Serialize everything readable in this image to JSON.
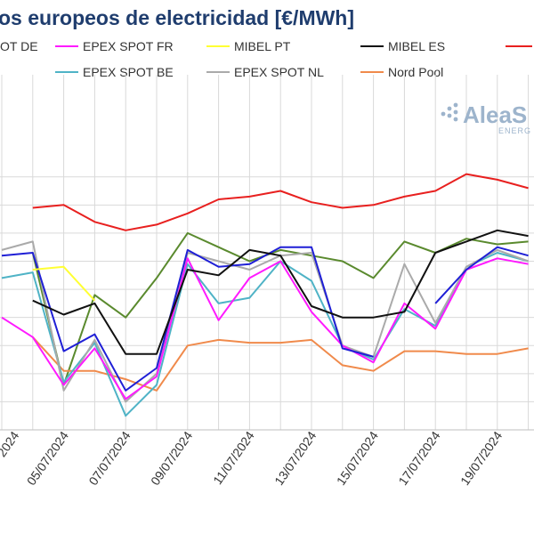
{
  "chart_data": {
    "type": "line",
    "title": "os europeos de electricidad [€/MWh]",
    "x": [
      "03/07/2024",
      "04/07/2024",
      "05/07/2024",
      "06/07/2024",
      "07/07/2024",
      "08/07/2024",
      "09/07/2024",
      "10/07/2024",
      "11/07/2024",
      "12/07/2024",
      "13/07/2024",
      "14/07/2024",
      "15/07/2024",
      "16/07/2024",
      "17/07/2024",
      "18/07/2024",
      "19/07/2024",
      "20/07/2024"
    ],
    "x_tick_labels": [
      "05/07/2024",
      "07/07/2024",
      "09/07/2024",
      "11/07/2024",
      "13/07/2024",
      "15/07/2024",
      "17/07/2024",
      "19/07/2024"
    ],
    "x_tick_label_partial": "2024",
    "ylim": [
      0,
      120
    ],
    "grid": true,
    "legend_position": "top",
    "series": [
      {
        "name": "OT DE",
        "color": "#1f1fd6",
        "values": [
          62,
          63,
          28,
          34,
          14,
          22,
          64,
          58,
          59,
          65,
          65,
          29,
          26,
          null,
          45,
          57,
          65,
          62
        ]
      },
      {
        "name": "EPEX SPOT FR",
        "color": "#ff1aff",
        "values": [
          40,
          33,
          16,
          29,
          11,
          19,
          61,
          39,
          54,
          60,
          42,
          30,
          24,
          45,
          36,
          57,
          61,
          59
        ]
      },
      {
        "name": "MIBEL PT",
        "color": "#ffff33",
        "values": [
          null,
          57,
          58,
          46,
          null,
          null,
          null,
          null,
          null,
          null,
          null,
          null,
          null,
          null,
          null,
          null,
          null,
          null
        ]
      },
      {
        "name": "MIBEL ES",
        "color": "#111111",
        "values": [
          null,
          46,
          41,
          45,
          27,
          27,
          57,
          55,
          64,
          62,
          44,
          40,
          40,
          42,
          63,
          67,
          71,
          69
        ]
      },
      {
        "name": "",
        "color": "#e8201f",
        "values": [
          null,
          79,
          80,
          74,
          71,
          73,
          77,
          82,
          83,
          85,
          81,
          79,
          80,
          83,
          85,
          91,
          89,
          86
        ]
      },
      {
        "name": "EPEX SPOT BE",
        "color": "#4fb3c6",
        "values": [
          54,
          56,
          17,
          31,
          5,
          16,
          59,
          45,
          47,
          60,
          53,
          30,
          25,
          43,
          37,
          58,
          63,
          60
        ]
      },
      {
        "name": "EPEX SPOT NL",
        "color": "#aaaaaa",
        "values": [
          64,
          67,
          14,
          32,
          10,
          20,
          63,
          60,
          57,
          62,
          63,
          30,
          26,
          59,
          38,
          58,
          64,
          60
        ]
      },
      {
        "name": "Nord Pool",
        "color": "#f08a4b",
        "values": [
          null,
          33,
          21,
          21,
          18,
          14,
          30,
          32,
          31,
          31,
          32,
          23,
          21,
          28,
          28,
          27,
          27,
          29
        ]
      },
      {
        "name": "",
        "color": "#5a8a2e",
        "values": [
          null,
          63,
          16,
          48,
          40,
          54,
          70,
          65,
          60,
          64,
          62,
          60,
          54,
          67,
          63,
          68,
          66,
          67
        ]
      }
    ]
  },
  "logo": {
    "text": "AleaS",
    "subtext": "ENERG"
  }
}
